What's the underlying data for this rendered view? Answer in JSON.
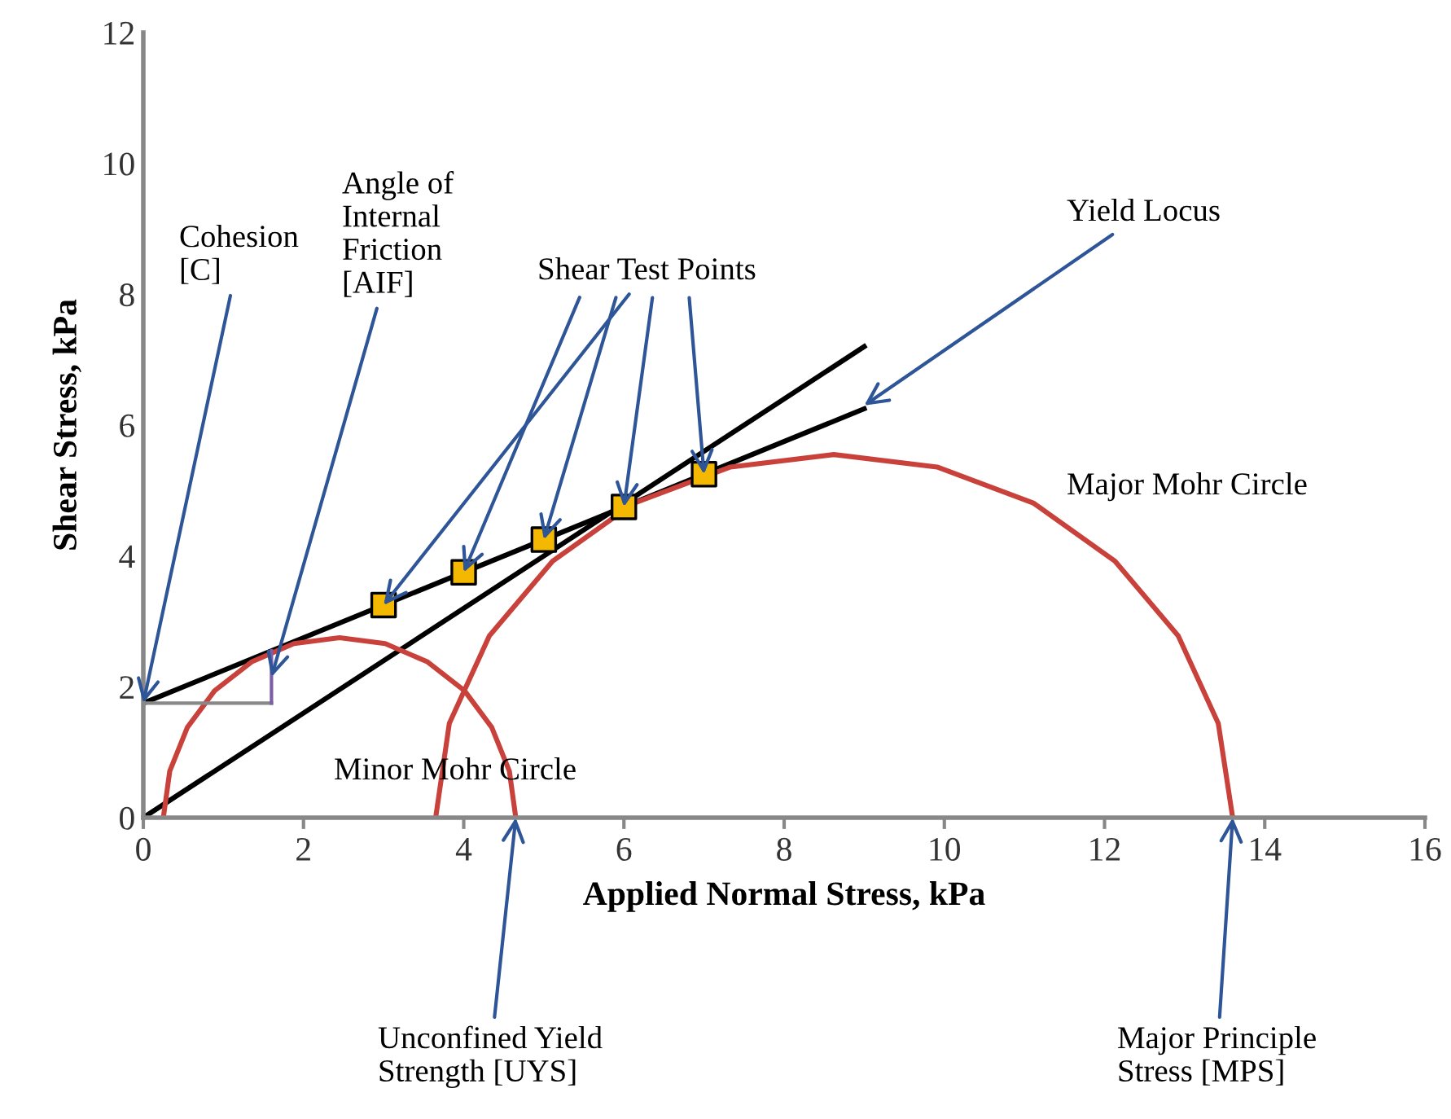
{
  "chart_data": {
    "type": "line",
    "xlabel": "Applied Normal Stress, kPa",
    "ylabel": "Shear Stress, kPa",
    "xlim": [
      0,
      16
    ],
    "ylim": [
      0,
      12
    ],
    "xticks": [
      0,
      2,
      4,
      6,
      8,
      10,
      12,
      14,
      16
    ],
    "yticks": [
      0,
      2,
      4,
      6,
      8,
      10,
      12
    ],
    "grid": false,
    "legend": false,
    "series": [
      {
        "color": "#000000",
        "x": [
          0,
          9
        ],
        "values": [
          1.75,
          6.25
        ]
      },
      {
        "color": "#000000",
        "x": [
          0,
          9
        ],
        "values": [
          0,
          7.2
        ]
      },
      {
        "color": "#c8413b",
        "x": [
          0.25,
          0.33,
          0.55,
          0.89,
          1.35,
          1.88,
          2.45,
          3.02,
          3.55,
          4.01,
          4.35,
          4.57,
          4.65
        ],
        "values": [
          0,
          0.71,
          1.38,
          1.94,
          2.38,
          2.66,
          2.75,
          2.66,
          2.38,
          1.94,
          1.38,
          0.71,
          0
        ]
      },
      {
        "color": "#c8413b",
        "x": [
          3.65,
          3.82,
          4.32,
          5.11,
          6.13,
          7.33,
          8.62,
          9.91,
          11.11,
          12.13,
          12.92,
          13.42,
          13.6
        ],
        "values": [
          0,
          1.44,
          2.78,
          3.92,
          4.81,
          5.36,
          5.55,
          5.36,
          4.81,
          3.92,
          2.78,
          1.44,
          0
        ]
      },
      {
        "color": "#888888",
        "x": [
          0,
          1.6
        ],
        "values": [
          1.75,
          1.75
        ]
      },
      {
        "color": "#7b5ea7",
        "x": [
          1.6,
          1.6
        ],
        "values": [
          1.75,
          2.55
        ]
      },
      {
        "type": "scatter",
        "color": "#f5b800",
        "marker": "square",
        "x": [
          3,
          4,
          5,
          6,
          7
        ],
        "values": [
          3.25,
          3.75,
          4.25,
          4.75,
          5.25
        ]
      }
    ],
    "annotations": [
      {
        "text": "Cohesion\n[C]",
        "x": 0,
        "y": 1.75
      },
      {
        "text": "Angle of\nInternal\nFriction\n[AIF]",
        "x": 1.6,
        "y": 2.15
      },
      {
        "text": "Shear Test Points",
        "x": 3,
        "y": 3.25
      },
      {
        "text": "Yield Locus",
        "x": 9,
        "y": 6.3
      },
      "Major Mohr Circle",
      "Minor Mohr Circle",
      {
        "text": "Unconfined Yield\nStrength [UYS]",
        "x": 4.65,
        "y": 0
      },
      {
        "text": "Major Principle\nStress [MPS]",
        "x": 13.6,
        "y": 0
      }
    ]
  }
}
